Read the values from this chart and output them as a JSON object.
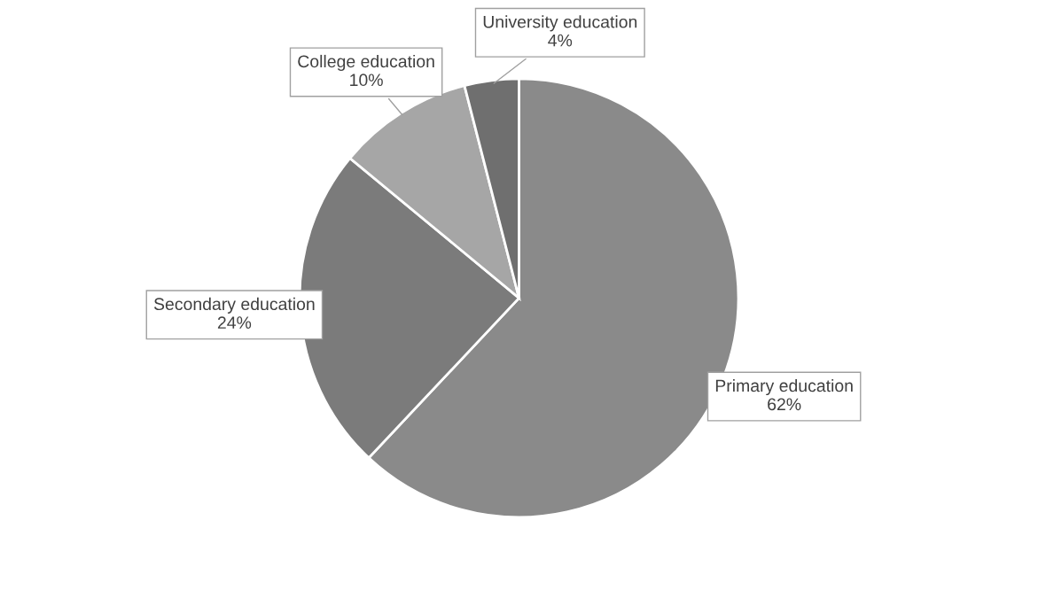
{
  "chart_data": {
    "type": "pie",
    "categories": [
      "Primary education",
      "Secondary education",
      "College education",
      "University education"
    ],
    "values": [
      62,
      24,
      10,
      4
    ],
    "value_labels": [
      "62%",
      "24%",
      "10%",
      "4%"
    ],
    "colors": [
      "#8a8a8a",
      "#7b7b7b",
      "#a6a6a6",
      "#6f6f6f"
    ],
    "legend": false
  }
}
